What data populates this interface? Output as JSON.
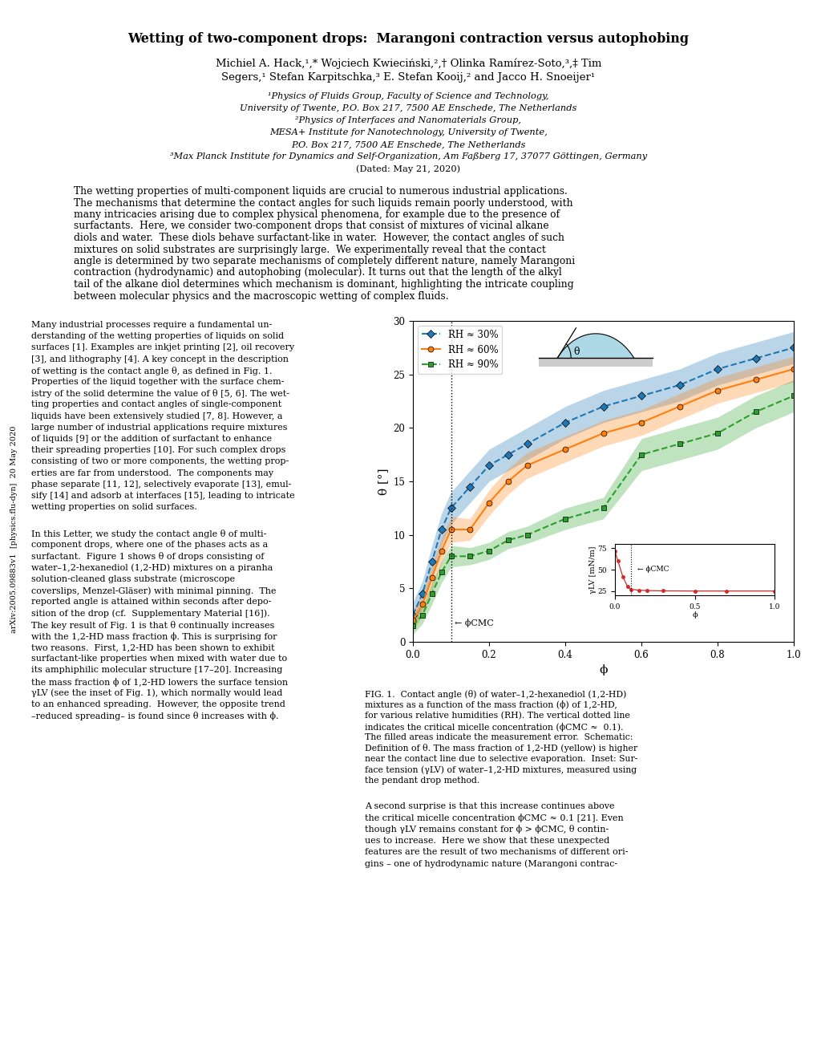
{
  "chart_data": [
    {
      "type": "line",
      "x_label": "ϕ",
      "y_label": "θ [°]",
      "xlim": [
        0,
        1.0
      ],
      "ylim": [
        0,
        30
      ],
      "xticks": [
        0.0,
        0.2,
        0.4,
        0.6,
        0.8,
        1.0
      ],
      "yticks": [
        0,
        5,
        10,
        15,
        20,
        25,
        30
      ],
      "legend": "upper left",
      "vline": 0.1,
      "annotation": "← ϕCMC",
      "schematic_label": "θ",
      "x": [
        0.0,
        0.025,
        0.05,
        0.075,
        0.1,
        0.15,
        0.2,
        0.25,
        0.3,
        0.4,
        0.5,
        0.6,
        0.7,
        0.8,
        0.9,
        1.0
      ],
      "series": [
        {
          "name": "RH ≈ 30%",
          "marker": "diamond",
          "line_style": "dashed",
          "values": [
            2.5,
            4.5,
            7.5,
            10.5,
            12.5,
            14.5,
            16.5,
            17.5,
            18.5,
            20.5,
            22.0,
            23.0,
            24.0,
            25.5,
            26.5,
            27.5
          ],
          "errors": [
            1.2,
            1.2,
            1.5,
            1.5,
            1.5,
            1.5,
            1.5,
            1.5,
            1.5,
            1.5,
            1.5,
            1.5,
            1.5,
            1.5,
            1.5,
            1.5
          ]
        },
        {
          "name": "RH ≈ 60%",
          "marker": "circle",
          "line_style": "solid",
          "values": [
            2.0,
            3.5,
            6.0,
            8.5,
            10.5,
            10.5,
            13.0,
            15.0,
            16.5,
            18.0,
            19.5,
            20.5,
            22.0,
            23.5,
            24.5,
            25.5
          ],
          "errors": [
            1.0,
            1.0,
            1.2,
            1.2,
            1.2,
            1.0,
            1.2,
            1.2,
            1.2,
            1.2,
            1.2,
            1.2,
            1.2,
            1.2,
            1.2,
            1.2
          ]
        },
        {
          "name": "RH ≈ 90%",
          "marker": "square",
          "line_style": "dashed",
          "values": [
            1.5,
            2.5,
            4.5,
            6.5,
            8.0,
            8.0,
            8.5,
            9.5,
            10.0,
            11.5,
            12.5,
            17.5,
            18.5,
            19.5,
            21.5,
            23.0
          ],
          "errors": [
            0.8,
            0.8,
            1.0,
            1.0,
            1.0,
            0.8,
            0.8,
            0.8,
            0.8,
            1.0,
            1.0,
            1.5,
            1.5,
            1.5,
            1.5,
            1.5
          ]
        }
      ]
    },
    {
      "type": "line",
      "x_label": "ϕ",
      "y_label": "γLV [mN/m]",
      "xlim": [
        0,
        1.0
      ],
      "ylim": [
        20,
        80
      ],
      "xticks": [
        0.0,
        0.5,
        1.0
      ],
      "yticks": [
        25,
        50,
        75
      ],
      "vline": 0.1,
      "annotation": "← ϕCMC",
      "marker": "circle",
      "line_style": "solid",
      "x": [
        0.0,
        0.02,
        0.05,
        0.08,
        0.1,
        0.15,
        0.2,
        0.3,
        0.5,
        0.7,
        1.0
      ],
      "values": [
        72.0,
        60.0,
        42.0,
        30.0,
        27.0,
        26.0,
        25.5,
        25.2,
        25.0,
        25.0,
        25.0
      ]
    }
  ],
  "page_text": {
    "title": "Wetting of two-component drops:  Marangoni contraction versus autophobing",
    "authors": [
      "Michiel A. Hack,¹,* Wojciech Kwieciński,²,† Olinka Ramírez-Soto,³,‡ Tim",
      "Segers,¹ Stefan Karpitschka,³ E. Stefan Kooij,² and Jacco H. Snoeijer¹"
    ],
    "affiliations": [
      "¹Physics of Fluids Group, Faculty of Science and Technology,",
      "University of Twente, P.O. Box 217, 7500 AE Enschede, The Netherlands",
      "²Physics of Interfaces and Nanomaterials Group,",
      "MESA+ Institute for Nanotechnology, University of Twente,",
      "P.O. Box 217, 7500 AE Enschede, The Netherlands",
      "³Max Planck Institute for Dynamics and Self-Organization, Am Faßberg 17, 37077 Göttingen, Germany"
    ],
    "date": "(Dated: May 21, 2020)",
    "abstract": [
      "The wetting properties of multi-component liquids are crucial to numerous industrial applications.",
      "The mechanisms that determine the contact angles for such liquids remain poorly understood, with",
      "many intricacies arising due to complex physical phenomena, for example due to the presence of",
      "surfactants.  Here, we consider two-component drops that consist of mixtures of vicinal alkane",
      "diols and water.  These diols behave surfactant-like in water.  However, the contact angles of such",
      "mixtures on solid substrates are surprisingly large.  We experimentally reveal that the contact",
      "angle is determined by two separate mechanisms of completely different nature, namely Marangoni",
      "contraction (hydrodynamic) and autophobing (molecular). It turns out that the length of the alkyl",
      "tail of the alkane diol determines which mechanism is dominant, highlighting the intricate coupling",
      "between molecular physics and the macroscopic wetting of complex fluids."
    ],
    "body_left_1": [
      "Many industrial processes require a fundamental un-",
      "derstanding of the wetting properties of liquids on solid",
      "surfaces [1]. Examples are inkjet printing [2], oil recovery",
      "[3], and lithography [4]. A key concept in the description",
      "of wetting is the contact angle θ, as defined in Fig. 1.",
      "Properties of the liquid together with the surface chem-",
      "istry of the solid determine the value of θ [5, 6]. The wet-",
      "ting properties and contact angles of single-component",
      "liquids have been extensively studied [7, 8]. However, a",
      "large number of industrial applications require mixtures",
      "of liquids [9] or the addition of surfactant to enhance",
      "their spreading properties [10]. For such complex drops",
      "consisting of two or more components, the wetting prop-",
      "erties are far from understood.  The components may",
      "phase separate [11, 12], selectively evaporate [13], emul-",
      "sify [14] and adsorb at interfaces [15], leading to intricate",
      "wetting properties on solid surfaces."
    ],
    "body_left_2": [
      "In this Letter, we study the contact angle θ of multi-",
      "component drops, where one of the phases acts as a",
      "surfactant.  Figure 1 shows θ of drops consisting of",
      "water–1,2-hexanediol (1,2-HD) mixtures on a piranha",
      "solution-cleaned glass substrate (microscope",
      "coverslips, Menzel-Gläser) with minimal pinning.  The",
      "reported angle is attained within seconds after depo-",
      "sition of the drop (cf.  Supplementary Material [16]).",
      "The key result of Fig. 1 is that θ continually increases",
      "with the 1,2-HD mass fraction ϕ. This is surprising for",
      "two reasons.  First, 1,2-HD has been shown to exhibit",
      "surfactant-like properties when mixed with water due to",
      "its amphiphilic molecular structure [17–20]. Increasing",
      "the mass fraction ϕ of 1,2-HD lowers the surface tension",
      "γLV (see the inset of Fig. 1), which normally would lead",
      "to an enhanced spreading.  However, the opposite trend",
      "–reduced spreading– is found since θ increases with ϕ."
    ],
    "body_right": [
      "A second surprise is that this increase continues above",
      "the critical micelle concentration ϕCMC ≈ 0.1 [21]. Even",
      "though γLV remains constant for ϕ > ϕCMC, θ contin-",
      "ues to increase.  Here we show that these unexpected",
      "features are the result of two mechanisms of different ori-",
      "gins – one of hydrodynamic nature (Marangoni contrac-"
    ],
    "caption": [
      "FIG. 1.  Contact angle (θ) of water–1,2-hexanediol (1,2-HD)",
      "mixtures as a function of the mass fraction (ϕ) of 1,2-HD,",
      "for various relative humidities (RH). The vertical dotted line",
      "indicates the critical micelle concentration (ϕCMC ≈  0.1).",
      "The filled areas indicate the measurement error.  Schematic:",
      "Definition of θ. The mass fraction of 1,2-HD (yellow) is higher",
      "near the contact line due to selective evaporation.  Inset: Sur-",
      "face tension (γLV) of water–1,2-HD mixtures, measured using",
      "the pendant drop method."
    ],
    "side_label": "arXiv:2005.09883v1  [physics.flu-dyn]  20 May 2020"
  }
}
